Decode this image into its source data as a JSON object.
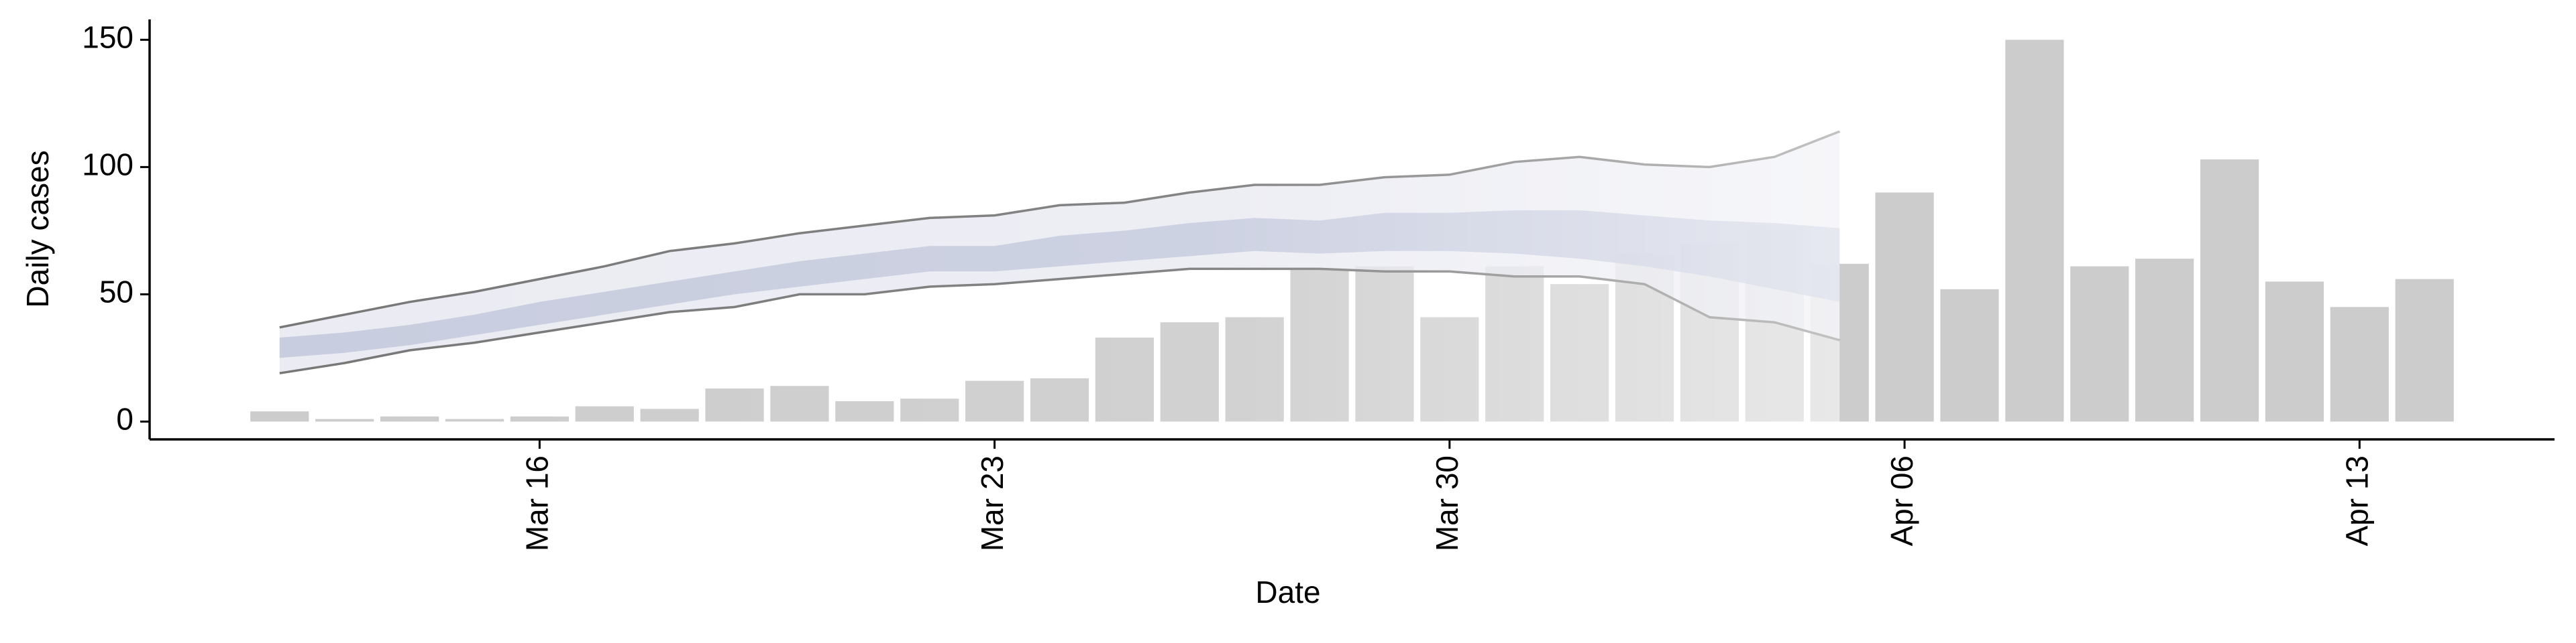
{
  "chart_data": {
    "type": "bar",
    "xlabel": "Date",
    "ylabel": "Daily cases",
    "color": "#cccccc",
    "x": [
      "Mar 12",
      "Mar 13",
      "Mar 14",
      "Mar 15",
      "Mar 16",
      "Mar 17",
      "Mar 18",
      "Mar 19",
      "Mar 20",
      "Mar 21",
      "Mar 22",
      "Mar 23",
      "Mar 24",
      "Mar 25",
      "Mar 26",
      "Mar 27",
      "Mar 28",
      "Mar 29",
      "Mar 30",
      "Mar 31",
      "Apr 01",
      "Apr 02",
      "Apr 03",
      "Apr 04",
      "Apr 05",
      "Apr 06",
      "Apr 07",
      "Apr 08",
      "Apr 09",
      "Apr 10",
      "Apr 11",
      "Apr 12",
      "Apr 13",
      "Apr 14"
    ],
    "values": [
      4,
      1,
      2,
      1,
      2,
      6,
      5,
      13,
      14,
      8,
      9,
      16,
      17,
      33,
      39,
      41,
      60,
      61,
      41,
      61,
      54,
      66,
      70,
      77,
      62,
      90,
      52,
      150,
      61,
      64,
      103,
      55,
      45,
      56
    ],
    "projection": {
      "x": [
        "Mar 12",
        "Mar 13",
        "Mar 14",
        "Mar 15",
        "Mar 16",
        "Mar 17",
        "Mar 18",
        "Mar 19",
        "Mar 20",
        "Mar 21",
        "Mar 22",
        "Mar 23",
        "Mar 24",
        "Mar 25",
        "Mar 26",
        "Mar 27",
        "Mar 28",
        "Mar 29",
        "Mar 30",
        "Mar 31",
        "Apr 01",
        "Apr 02",
        "Apr 03",
        "Apr 04",
        "Apr 05"
      ],
      "upper_outer": [
        37,
        42,
        47,
        51,
        56,
        61,
        67,
        70,
        74,
        77,
        80,
        81,
        85,
        86,
        90,
        93,
        93,
        96,
        97,
        102,
        104,
        101,
        100,
        104,
        114
      ],
      "lower_outer": [
        19,
        23,
        28,
        31,
        35,
        39,
        43,
        45,
        50,
        50,
        53,
        54,
        56,
        58,
        60,
        60,
        60,
        59,
        59,
        57,
        57,
        54,
        41,
        39,
        32
      ],
      "upper_inner": [
        33,
        35,
        38,
        42,
        47,
        51,
        55,
        59,
        63,
        66,
        69,
        69,
        73,
        75,
        78,
        80,
        79,
        82,
        82,
        83,
        83,
        81,
        79,
        78,
        76
      ],
      "lower_inner": [
        25,
        27,
        30,
        34,
        38,
        42,
        46,
        50,
        53,
        56,
        59,
        59,
        61,
        63,
        65,
        67,
        66,
        67,
        67,
        66,
        64,
        61,
        57,
        52,
        47
      ],
      "outer_color": "#e4e6ef",
      "inner_color": "#bcc3d8",
      "line_color": "#777777"
    },
    "xlim": [
      "Mar 10",
      "Apr 16"
    ],
    "xticks": [
      "Mar 16",
      "Mar 23",
      "Mar 30",
      "Apr 06",
      "Apr 13"
    ],
    "ylim": [
      -7,
      158
    ],
    "yticks": [
      0,
      50,
      100,
      150
    ]
  }
}
